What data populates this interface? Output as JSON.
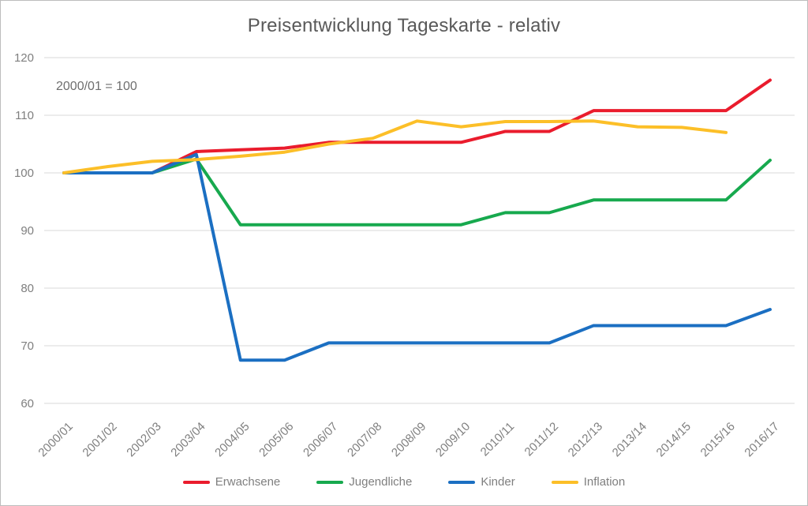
{
  "window": {
    "background": "#ffffff",
    "border_color": "#bdbdbd"
  },
  "chart_data": {
    "type": "line",
    "title": "Preisentwicklung Tageskarte - relativ",
    "annotation": "2000/01 = 100",
    "categories": [
      "2000/01",
      "2001/02",
      "2002/03",
      "2003/04",
      "2004/05",
      "2005/06",
      "2006/07",
      "2007/08",
      "2008/09",
      "2009/10",
      "2010/11",
      "2011/12",
      "2012/13",
      "2013/14",
      "2014/15",
      "2015/16",
      "2016/17"
    ],
    "series": [
      {
        "name": "Erwachsene",
        "color": "#ea1c2d",
        "values": [
          100,
          100,
          100,
          103.7,
          104.0,
          104.3,
          105.3,
          105.3,
          105.3,
          105.3,
          107.2,
          107.2,
          110.8,
          110.8,
          110.8,
          110.8,
          116.1
        ]
      },
      {
        "name": "Jugendliche",
        "color": "#17a94e",
        "values": [
          100,
          100,
          100,
          102.4,
          91.0,
          91.0,
          91.0,
          91.0,
          91.0,
          91.0,
          93.1,
          93.1,
          95.3,
          95.3,
          95.3,
          95.3,
          102.2
        ]
      },
      {
        "name": "Kinder",
        "color": "#1b6fc2",
        "values": [
          100,
          100,
          100,
          103.2,
          67.5,
          67.5,
          70.5,
          70.5,
          70.5,
          70.5,
          70.5,
          70.5,
          73.5,
          73.5,
          73.5,
          73.5,
          76.3
        ]
      },
      {
        "name": "Inflation",
        "color": "#fcbf28",
        "values": [
          100,
          101.1,
          102.0,
          102.3,
          102.9,
          103.6,
          105.0,
          106.0,
          109.0,
          108.0,
          108.9,
          108.9,
          109.0,
          108.0,
          107.9,
          107.0,
          null
        ]
      }
    ],
    "y_axis": {
      "min": 60,
      "max": 120,
      "step": 10,
      "tick_labels": [
        "60",
        "70",
        "80",
        "90",
        "100",
        "110",
        "120"
      ]
    },
    "grid": true,
    "legend_position": "bottom",
    "styles": {
      "title_color": "#595959",
      "axis_text_color": "#7f7f7f",
      "gridline_color": "#d9d9d9",
      "line_width": 4
    }
  }
}
